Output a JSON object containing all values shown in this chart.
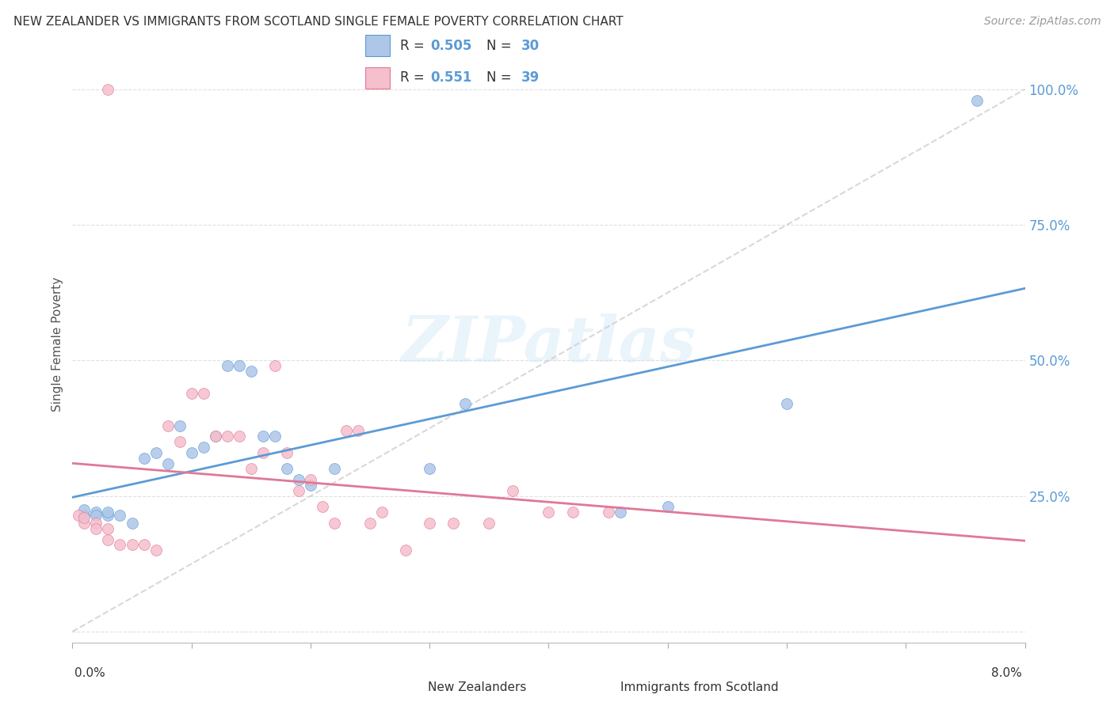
{
  "title": "NEW ZEALANDER VS IMMIGRANTS FROM SCOTLAND SINGLE FEMALE POVERTY CORRELATION CHART",
  "source": "Source: ZipAtlas.com",
  "ylabel": "Single Female Poverty",
  "x_range": [
    0.0,
    0.08
  ],
  "y_range": [
    -0.02,
    1.08
  ],
  "y_ticks": [
    0.0,
    0.25,
    0.5,
    0.75,
    1.0
  ],
  "y_tick_labels": [
    "",
    "25.0%",
    "50.0%",
    "75.0%",
    "100.0%"
  ],
  "blue_color": "#aec6e8",
  "blue_line_color": "#5b9bd5",
  "pink_color": "#f5bfcc",
  "pink_line_color": "#e07898",
  "blue_R": 0.505,
  "blue_N": 30,
  "pink_R": 0.551,
  "pink_N": 39,
  "marker_size": 100,
  "watermark_text": "ZIPatlas",
  "blue_scatter_x": [
    0.001,
    0.001,
    0.002,
    0.002,
    0.003,
    0.003,
    0.004,
    0.005,
    0.006,
    0.007,
    0.008,
    0.009,
    0.01,
    0.011,
    0.012,
    0.013,
    0.014,
    0.015,
    0.016,
    0.017,
    0.018,
    0.019,
    0.02,
    0.022,
    0.03,
    0.033,
    0.046,
    0.05,
    0.06,
    0.076
  ],
  "blue_scatter_y": [
    0.215,
    0.225,
    0.22,
    0.215,
    0.215,
    0.22,
    0.215,
    0.2,
    0.32,
    0.33,
    0.31,
    0.38,
    0.33,
    0.34,
    0.36,
    0.49,
    0.49,
    0.48,
    0.36,
    0.36,
    0.3,
    0.28,
    0.27,
    0.3,
    0.3,
    0.42,
    0.22,
    0.23,
    0.42,
    0.98
  ],
  "pink_scatter_x": [
    0.0005,
    0.001,
    0.001,
    0.002,
    0.002,
    0.003,
    0.003,
    0.004,
    0.005,
    0.006,
    0.007,
    0.008,
    0.009,
    0.01,
    0.011,
    0.012,
    0.013,
    0.014,
    0.015,
    0.016,
    0.017,
    0.018,
    0.019,
    0.02,
    0.021,
    0.022,
    0.023,
    0.024,
    0.025,
    0.026,
    0.028,
    0.03,
    0.032,
    0.035,
    0.037,
    0.04,
    0.042,
    0.045,
    0.003
  ],
  "pink_scatter_y": [
    0.215,
    0.2,
    0.21,
    0.2,
    0.19,
    0.17,
    0.19,
    0.16,
    0.16,
    0.16,
    0.15,
    0.38,
    0.35,
    0.44,
    0.44,
    0.36,
    0.36,
    0.36,
    0.3,
    0.33,
    0.49,
    0.33,
    0.26,
    0.28,
    0.23,
    0.2,
    0.37,
    0.37,
    0.2,
    0.22,
    0.15,
    0.2,
    0.2,
    0.2,
    0.26,
    0.22,
    0.22,
    0.22,
    1.0
  ]
}
